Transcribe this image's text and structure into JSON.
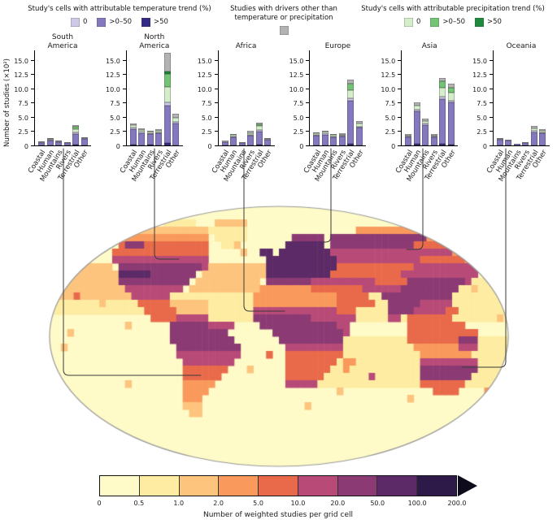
{
  "legends": {
    "temperature": {
      "title": "Study's cells with attributable temperature trend (%)",
      "items": [
        {
          "label": "0",
          "color": "#cfc9e8"
        },
        {
          "label": ">0–50",
          "color": "#8478bf"
        },
        {
          "label": ">50",
          "color": "#332a86"
        }
      ]
    },
    "other_drivers": {
      "title": "Studies with drivers other than temperature or precipitation",
      "color": "#b3b3b3"
    },
    "precipitation": {
      "title": "Study's cells with attributable precipitation trend (%)",
      "items": [
        {
          "label": "0",
          "color": "#d4edca"
        },
        {
          "label": ">0–50",
          "color": "#74c476"
        },
        {
          "label": ">50",
          "color": "#1e8b3c"
        }
      ]
    }
  },
  "chart_data": {
    "type": "bar",
    "stacked": true,
    "ylabel": "Number of studies (×10²)",
    "yticks": [
      0,
      2.5,
      5.0,
      7.5,
      10.0,
      12.5,
      15.0
    ],
    "ylim": [
      0,
      15
    ],
    "categories": [
      "Coastal",
      "Human",
      "Mountains",
      "Rivers",
      "Terrestrial",
      "Other"
    ],
    "stack_order": [
      "t50",
      "t050",
      "t0",
      "p0",
      "p050",
      "p50",
      "other"
    ],
    "stack_labels": {
      "t50": "temperature >50%",
      "t050": "temperature >0–50%",
      "t0": "temperature 0%",
      "p0": "precipitation 0%",
      "p050": "precipitation >0–50%",
      "p50": "precipitation >50%",
      "other": "other drivers"
    },
    "stack_colors": {
      "t50": "#332a86",
      "t050": "#8478bf",
      "t0": "#cfc9e8",
      "p0": "#d4edca",
      "p050": "#74c476",
      "p50": "#1e8b3c",
      "other": "#b3b3b3"
    },
    "panels": [
      {
        "name": "South America",
        "title_lines": [
          "South",
          "America"
        ],
        "values": [
          [
            0,
            0.5,
            0.1,
            0,
            0,
            0,
            0.1
          ],
          [
            0,
            0.8,
            0.1,
            0.1,
            0,
            0,
            0.1
          ],
          [
            0,
            0.6,
            0.1,
            0,
            0,
            0,
            0.1
          ],
          [
            0,
            0.4,
            0,
            0,
            0,
            0,
            0.1
          ],
          [
            0.2,
            1.8,
            0.3,
            0.6,
            0.4,
            0,
            0.3
          ],
          [
            0,
            1.1,
            0.1,
            0,
            0,
            0,
            0.2
          ]
        ]
      },
      {
        "name": "North America",
        "title_lines": [
          "North",
          "America"
        ],
        "values": [
          [
            0.2,
            2.6,
            0.3,
            0.4,
            0,
            0,
            0.3
          ],
          [
            0,
            2.2,
            0.2,
            0.3,
            0,
            0,
            0.3
          ],
          [
            0.2,
            1.8,
            0.2,
            0.2,
            0,
            0,
            0.2
          ],
          [
            0,
            2.1,
            0.2,
            0.3,
            0,
            0,
            0.3
          ],
          [
            0.4,
            6.6,
            0.5,
            2.8,
            2.3,
            0.3,
            3.3
          ],
          [
            0,
            3.9,
            0.3,
            0.6,
            0,
            0,
            0.8
          ]
        ]
      },
      {
        "name": "Africa",
        "title_lines": [
          "Africa"
        ],
        "values": [
          [
            0,
            0.6,
            0,
            0,
            0,
            0,
            0.2
          ],
          [
            0,
            1.4,
            0.2,
            0.2,
            0,
            0,
            0.2
          ],
          [
            0,
            0.5,
            0,
            0,
            0,
            0,
            0.1
          ],
          [
            0,
            1.7,
            0.2,
            0.3,
            0,
            0,
            0.3
          ],
          [
            0.2,
            2.2,
            0.3,
            0.7,
            0.3,
            0,
            0.3
          ],
          [
            0,
            1.0,
            0,
            0.1,
            0,
            0,
            0.2
          ]
        ]
      },
      {
        "name": "Europe",
        "title_lines": [
          "Europe"
        ],
        "values": [
          [
            0,
            1.7,
            0.2,
            0.2,
            0,
            0,
            0.2
          ],
          [
            0,
            1.9,
            0.2,
            0.3,
            0,
            0,
            0.2
          ],
          [
            0,
            1.4,
            0.2,
            0.2,
            0,
            0,
            0.1
          ],
          [
            0,
            1.5,
            0.2,
            0.2,
            0,
            0,
            0.2
          ],
          [
            0.3,
            7.6,
            0.3,
            1.5,
            1.1,
            0,
            0.8
          ],
          [
            0,
            3.1,
            0.2,
            0.5,
            0,
            0,
            0.5
          ]
        ]
      },
      {
        "name": "Asia",
        "title_lines": [
          "Asia"
        ],
        "values": [
          [
            0,
            1.4,
            0.1,
            0.2,
            0,
            0,
            0.2
          ],
          [
            0.3,
            5.7,
            0.3,
            0.7,
            0,
            0,
            0.6
          ],
          [
            0,
            3.6,
            0.2,
            0.5,
            0,
            0,
            0.4
          ],
          [
            0,
            1.4,
            0.1,
            0.2,
            0,
            0,
            0.2
          ],
          [
            0.3,
            7.8,
            0.4,
            1.6,
            1.1,
            0,
            0.6
          ],
          [
            0.2,
            7.3,
            0.3,
            1.4,
            0.9,
            0,
            0.7
          ]
        ]
      },
      {
        "name": "Oceania",
        "title_lines": [
          "Oceania"
        ],
        "values": [
          [
            0,
            1.0,
            0.1,
            0,
            0,
            0,
            0.2
          ],
          [
            0,
            0.8,
            0,
            0,
            0,
            0,
            0.2
          ],
          [
            0,
            0.3,
            0,
            0,
            0,
            0,
            0
          ],
          [
            0,
            0.5,
            0,
            0,
            0,
            0,
            0.1
          ],
          [
            0,
            2.3,
            0.2,
            0.5,
            0,
            0,
            0.4
          ],
          [
            0,
            2.1,
            0.2,
            0.3,
            0,
            0,
            0.3
          ]
        ]
      }
    ]
  },
  "map": {
    "palette": [
      "#fffbc8",
      "#fdeca2",
      "#fdc47e",
      "#f99a5c",
      "#e96a4a",
      "#b84a78",
      "#8c3a74",
      "#5c2a66",
      "#2e1a48"
    ],
    "grid": [
      "000000000000000000000000000000000000000000000000000000000000000000000000",
      "000000000000000000000000000000000000000000000000000000000000000000000000",
      "000000000000000000111110002222200000000000000000000000000000000000000000",
      "000000000000002222222222211111100000000000000000333333333333333333333000",
      "000333333000333333333333301111100000006666606666666666666663333333333330",
      "000444444004666444444444400111000000077777706666666666666444444433333330",
      "000000000044444444444444400000000770777777775555555555555555555333333330",
      "000000000055555555555555500000000077777777777555555555555544444443333300",
      "222222222206666666666666022222222277777777777444444444444555555555500000",
      "222222222227777766666660222222222277777777774444444444455555555555500000",
      "222222222226666666666602222222222066666665555555555444446666666665111111",
      "222222222222555555555022222222222333333334444444455555566666666611111111",
      "222222222222255555511111111111113333333333333444441166666666666111111111",
      "111111111111114444422222211111113333333333333444444116666655555111111111",
      "111111111111111444442222211111115555555555555444111116666555554411111111",
      "000000000000000044445555511111116666666665555555111115514444444111111111",
      "000000000000000000066666655550000666666666666550000000004444444440000000",
      "000000000000000000066666666600000006666666666650000000004444444444400000",
      "000000000000000000066666666660000000666666666611111111114444444466611111",
      "000000000000000000006666666666000000055555555511111111111333333355511111",
      "000000000000000000005555555555000000044444444411111111111133333333111111",
      "000000000000000000000555555550000000044444444133111111111155555555511111",
      "000000000000000000000444444400000000044444441131111111111166666666611111",
      "000000000000000000000444444000000000044444411111111111111166666666111111",
      "000000000000000000000333330000000000055555111111111111111144444441111111",
      "000000000000000000000333300000000000000000000000000000000000444400003300",
      "000000000000000000000333000000000000000000000000000000000000000000003000",
      "000000000000000000000222000000000000000000000000000000000000000000000000",
      "000000000000000000000022000000000000000000000000000000000000000000000000",
      "000000000000000000000000000000000000000000000000000000000000000000000000",
      "000000000000000000000000000000000000000000000000000000000000000000000000",
      "000000000000000000000000000000000000000000000000000000000000000000000000",
      "000000000000000000000000000000000000000000000000000000000000000000000000",
      "000000000000000000000000000000000000000000000000000000000000000000000000",
      "000000000000000000000000000000000000000000000000000000000000000000000000",
      "000000000000000000000000000000000000000000000000000000000000000000000000"
    ],
    "speckles": [
      [
        5,
        29,
        2
      ],
      [
        6,
        30,
        2
      ],
      [
        9,
        69,
        2
      ],
      [
        11,
        66,
        2
      ],
      [
        12,
        4,
        4
      ],
      [
        13,
        8,
        2
      ],
      [
        16,
        12,
        2
      ],
      [
        17,
        3,
        2
      ],
      [
        19,
        2,
        2
      ],
      [
        20,
        34,
        4
      ],
      [
        22,
        31,
        2
      ],
      [
        23,
        50,
        5
      ],
      [
        24,
        12,
        2
      ],
      [
        25,
        45,
        2
      ],
      [
        26,
        56,
        2
      ],
      [
        27,
        40,
        2
      ],
      [
        15,
        70,
        2
      ],
      [
        8,
        24,
        5
      ]
    ]
  },
  "colorbar": {
    "tick_labels": [
      "0",
      "0.5",
      "1.0",
      "2.0",
      "5.0",
      "10.0",
      "20.0",
      "50.0",
      "100.0",
      "200.0"
    ],
    "colors": [
      "#fffbc8",
      "#fdeca2",
      "#fdc47e",
      "#f99a5c",
      "#e96a4a",
      "#b84a78",
      "#8c3a74",
      "#5c2a66",
      "#2e1a48"
    ],
    "arrow_color": "#0e0c1c",
    "label": "Number of weighted studies per grid cell"
  }
}
